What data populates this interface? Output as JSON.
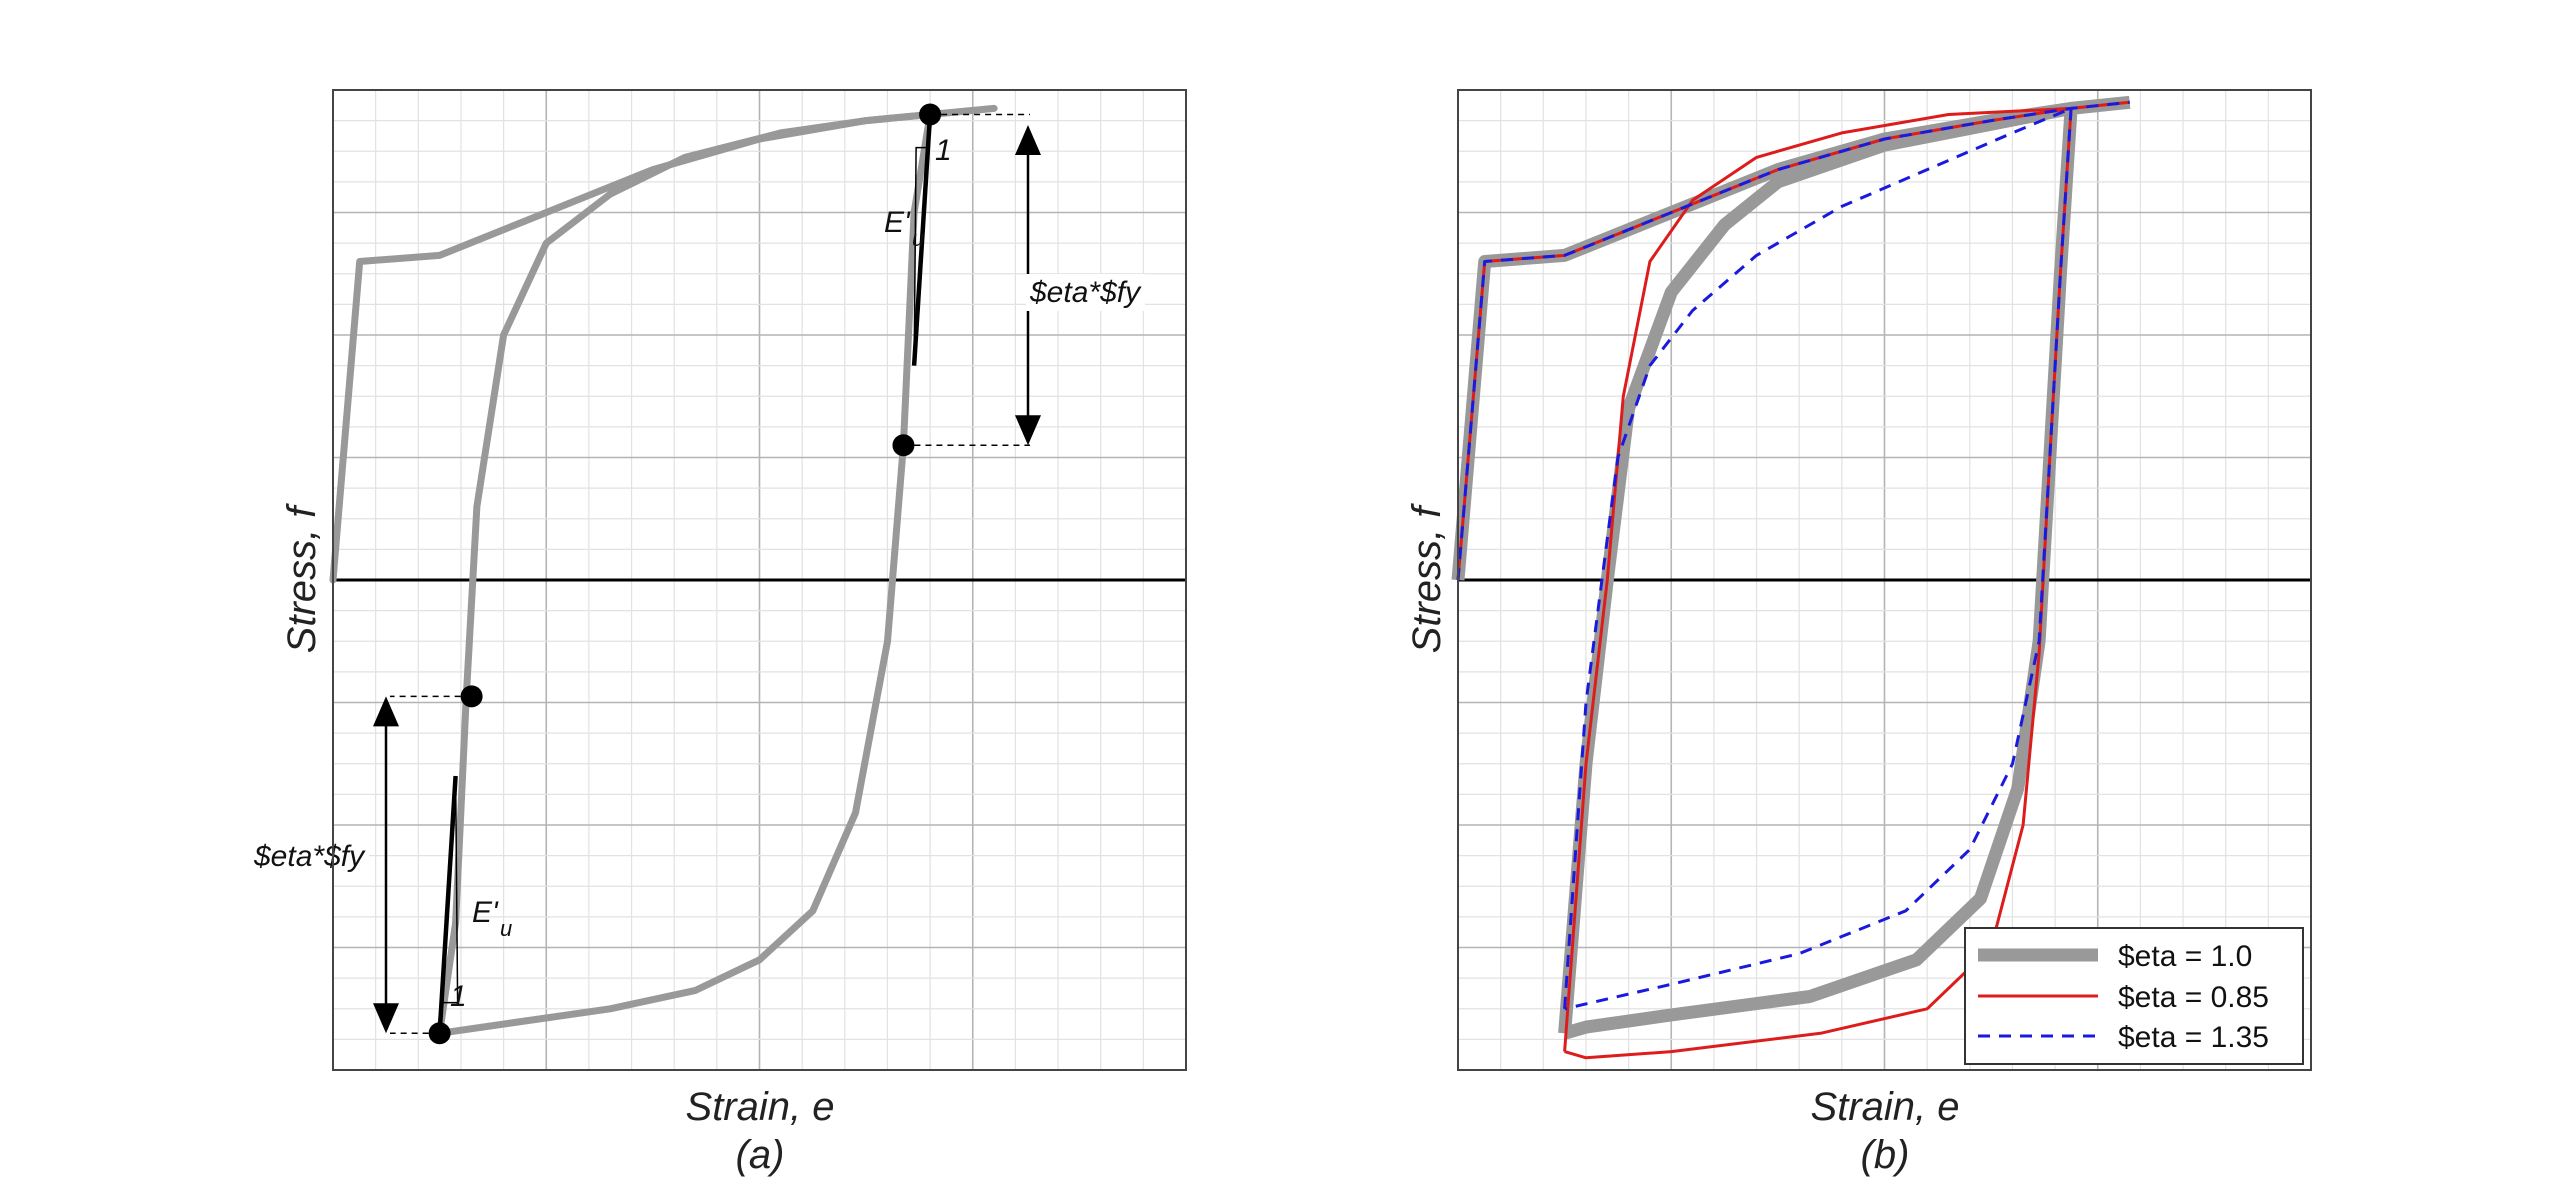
{
  "colors": {
    "envelope": "#999999",
    "tangent": "#000000",
    "eta_1_0": "#999999",
    "eta_0_85": "#dd1c1c",
    "eta_1_35": "#1a1adf",
    "grid_major": "#b4b4b4",
    "grid_minor": "#e2e2e2"
  },
  "chart_data": [
    {
      "type": "line",
      "title": "",
      "xlabel": "Strain, e",
      "ylabel": "Stress, f",
      "caption": "(a)",
      "grid": true,
      "xlim": [
        0,
        8
      ],
      "ylim": [
        -4,
        4
      ],
      "series": [
        {
          "x": [
            0,
            0.25,
            1.0,
            2.0,
            3.0,
            4.0,
            5.0,
            5.6,
            6.2
          ],
          "y": [
            0,
            2.6,
            2.65,
            3.0,
            3.35,
            3.6,
            3.75,
            3.8,
            3.85
          ]
        },
        {
          "x": [
            5.6,
            5.45,
            5.35,
            5.2,
            4.9,
            4.5,
            4.0,
            3.4,
            2.6,
            1.8,
            1.0
          ],
          "y": [
            3.8,
            3.0,
            1.1,
            -0.5,
            -1.9,
            -2.7,
            -3.1,
            -3.35,
            -3.5,
            -3.6,
            -3.7
          ]
        },
        {
          "x": [
            1.0,
            1.15,
            1.25,
            1.35,
            1.6,
            2.0,
            2.6,
            3.3,
            4.2,
            5.0,
            5.6
          ],
          "y": [
            -3.7,
            -2.8,
            -0.95,
            0.6,
            2.0,
            2.75,
            3.15,
            3.45,
            3.65,
            3.75,
            3.8
          ]
        }
      ],
      "tangent_lines": [
        {
          "x": [
            5.6,
            5.45
          ],
          "y": [
            3.8,
            1.75
          ]
        },
        {
          "x": [
            1.0,
            1.15
          ],
          "y": [
            -3.7,
            -1.6
          ]
        }
      ],
      "markers": [
        {
          "x": 5.6,
          "y": 3.8
        },
        {
          "x": 5.35,
          "y": 1.1
        },
        {
          "x": 1.3,
          "y": -0.95
        },
        {
          "x": 1.0,
          "y": -3.7
        }
      ],
      "annotations": {
        "eta_fy_top": "$eta*$fy",
        "eta_fy_bottom": "$eta*$fy",
        "eu_top": "E'",
        "eu_top_sub": "u",
        "eu_bottom": "E'",
        "eu_bottom_sub": "u",
        "slope_top": "1",
        "slope_bottom": "1"
      }
    },
    {
      "type": "line",
      "title": "",
      "xlabel": "Strain, e",
      "ylabel": "Stress, f",
      "caption": "(b)",
      "grid": true,
      "xlim": [
        0,
        8
      ],
      "ylim": [
        -4,
        4
      ],
      "legend_position": "bottom-right",
      "series": [
        {
          "name": "$eta = 1.0",
          "x": [
            0,
            0.25,
            1.0,
            2.0,
            3.0,
            4.0,
            5.0,
            5.75,
            6.3,
            null,
            5.75,
            5.65,
            5.55,
            5.45,
            5.25,
            4.9,
            4.3,
            3.3,
            2.0,
            1.2,
            1.0,
            null,
            1.0,
            1.2,
            1.4,
            1.6,
            2.0,
            2.5,
            3.0,
            4.0,
            5.0,
            5.75
          ],
          "y": [
            0,
            2.6,
            2.65,
            3.0,
            3.35,
            3.6,
            3.75,
            3.85,
            3.9,
            null,
            3.85,
            2.5,
            1.0,
            -0.5,
            -1.7,
            -2.6,
            -3.1,
            -3.4,
            -3.55,
            -3.65,
            -3.7,
            null,
            -3.7,
            -1.5,
            0.0,
            1.4,
            2.35,
            2.9,
            3.25,
            3.55,
            3.72,
            3.85
          ]
        },
        {
          "name": "$eta = 0.85",
          "x": [
            0,
            0.25,
            1.0,
            2.0,
            3.0,
            4.0,
            5.0,
            5.75,
            6.3,
            null,
            5.75,
            5.65,
            5.55,
            5.45,
            5.3,
            5.0,
            4.4,
            3.4,
            2.0,
            1.2,
            1.0,
            null,
            1.0,
            1.2,
            1.4,
            1.55,
            1.8,
            2.2,
            2.8,
            3.6,
            4.6,
            5.75
          ],
          "y": [
            0,
            2.6,
            2.65,
            3.0,
            3.35,
            3.6,
            3.75,
            3.85,
            3.9,
            null,
            3.85,
            2.5,
            1.0,
            -0.6,
            -2.0,
            -3.0,
            -3.5,
            -3.7,
            -3.85,
            -3.9,
            -3.85,
            null,
            -3.85,
            -1.5,
            0.0,
            1.5,
            2.6,
            3.1,
            3.45,
            3.65,
            3.8,
            3.85
          ]
        },
        {
          "name": "$eta = 1.35",
          "x": [
            0,
            0.25,
            1.0,
            2.0,
            3.0,
            4.0,
            5.0,
            5.75,
            6.3,
            null,
            5.75,
            5.65,
            5.55,
            5.45,
            5.2,
            4.8,
            4.2,
            3.2,
            2.0,
            1.0,
            null,
            1.0,
            1.2,
            1.5,
            1.8,
            2.2,
            2.8,
            3.6,
            4.4,
            5.2,
            5.75
          ],
          "y": [
            0,
            2.6,
            2.65,
            3.0,
            3.35,
            3.6,
            3.75,
            3.85,
            3.9,
            null,
            3.85,
            2.5,
            1.0,
            -0.5,
            -1.5,
            -2.2,
            -2.7,
            -3.05,
            -3.3,
            -3.5,
            null,
            -3.5,
            -1.0,
            1.0,
            1.75,
            2.2,
            2.65,
            3.05,
            3.35,
            3.65,
            3.85
          ]
        }
      ]
    }
  ]
}
